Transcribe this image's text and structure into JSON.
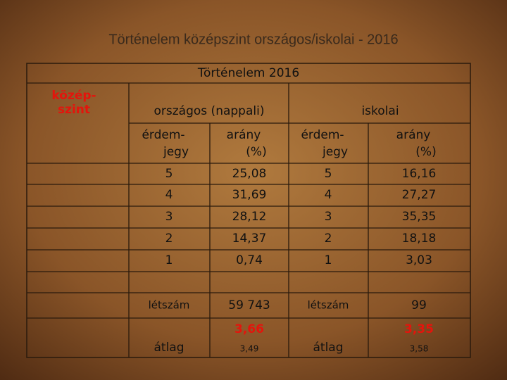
{
  "title": "Történelem középszint országos/iskolai - 2016",
  "table": {
    "caption": "Történelem 2016",
    "row_label": [
      "közép-",
      "szint"
    ],
    "groups": [
      "országos (nappali)",
      "iskolai"
    ],
    "columns": [
      [
        "érdem-",
        "jegy"
      ],
      [
        "arány",
        "(%)"
      ],
      [
        "érdem-",
        "jegy"
      ],
      [
        "arány",
        "(%)"
      ]
    ],
    "rows": [
      [
        "5",
        "25,08",
        "5",
        "16,16"
      ],
      [
        "4",
        "31,69",
        "4",
        "27,27"
      ],
      [
        "3",
        "28,12",
        "3",
        "35,35"
      ],
      [
        "2",
        "14,37",
        "2",
        "18,18"
      ],
      [
        "1",
        "0,74",
        "1",
        "3,03"
      ]
    ],
    "count_row": [
      "létszám",
      "59 743",
      "létszám",
      "99"
    ],
    "average_row": {
      "label": [
        "átlag",
        "átlag"
      ],
      "values": [
        "3,66",
        "3,35"
      ],
      "previous": [
        "3,49",
        "3,58"
      ]
    }
  }
}
